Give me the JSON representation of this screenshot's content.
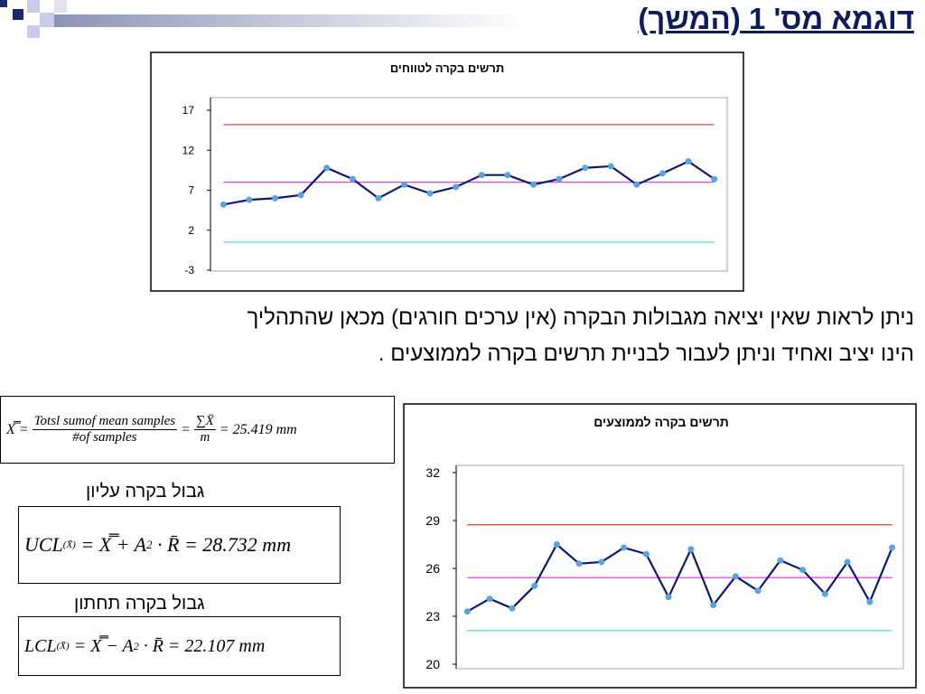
{
  "header": {
    "title": "דוגמא מס' 1 (המשך)"
  },
  "paragraph": [
    "ניתן לראות שאין יציאה מגבולות הבקרה (אין ערכים חורגים)  מכאן שהתהליך",
    "הינו יציב ואחיד וניתן לעבור לבניית תרשים בקרה לממוצעים ."
  ],
  "formulas": {
    "mean": {
      "lhs": "X̿ =",
      "num1": "Totsl sumof mean samples",
      "den1": "#of  samples",
      "eq": "=",
      "num2": "∑X̄",
      "den2": "m",
      "result": "= 25.419 mm"
    },
    "ucl": {
      "label": "גבול בקרה עליון",
      "name": "UCL",
      "sub": "(X̄)",
      "rhs": "= X̿ + A",
      "a_sub": "2",
      "tail": "· R̄ = 28.732 mm"
    },
    "lcl": {
      "label": "גבול בקרה תחתון",
      "name": "LCL",
      "sub": "(X̄)",
      "rhs": "= X̿ − A",
      "a_sub": "2",
      "tail": "· R̄ = 22.107 mm"
    }
  },
  "chart_data": [
    {
      "type": "line",
      "title": "תרשים בקרה לטווחים",
      "values": [
        5.2,
        5.8,
        6.0,
        6.4,
        9.8,
        8.4,
        6.0,
        7.7,
        6.6,
        7.4,
        8.9,
        8.9,
        7.7,
        8.4,
        9.8,
        10.0,
        7.7,
        9.1,
        10.6,
        8.4
      ],
      "color": "#0b1a6e",
      "marker_color": "#5ba3e0",
      "reference_lines": [
        {
          "value": 15.2,
          "color": "#e03a2a"
        },
        {
          "value": 8.0,
          "color": "#e040e0"
        },
        {
          "value": 0.5,
          "color": "#40e0e0"
        }
      ],
      "ylim": [
        -3,
        17
      ],
      "yticks": [
        -3,
        2,
        7,
        12,
        17
      ]
    },
    {
      "type": "line",
      "title": "תרשים בקרה לממוצעים",
      "values": [
        23.3,
        24.1,
        23.5,
        24.9,
        27.5,
        26.3,
        26.4,
        27.3,
        26.9,
        24.2,
        27.2,
        23.7,
        25.5,
        24.6,
        26.5,
        25.9,
        24.4,
        26.4,
        23.9,
        27.3
      ],
      "color": "#0b1a6e",
      "marker_color": "#5ba3e0",
      "reference_lines": [
        {
          "value": 28.732,
          "color": "#e03a2a"
        },
        {
          "value": 25.419,
          "color": "#e040e0"
        },
        {
          "value": 22.107,
          "color": "#40e0e0"
        }
      ],
      "ylim": [
        20,
        32
      ],
      "yticks": [
        20,
        23,
        26,
        29,
        32
      ]
    }
  ]
}
